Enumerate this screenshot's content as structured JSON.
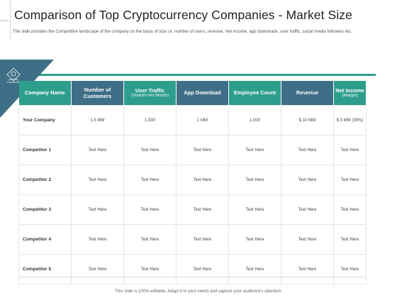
{
  "slide": {
    "title": "Comparison of Top Cryptocurrency Companies - Market Size",
    "subtitle": "The slide provides the Competitive landscape of the company on the basis of size i.e. number of users, revenue, Net income, app downloads, user traffic, social media followers etc.",
    "footer": "This slide is 100% editable. Adapt it to your needs and capture your audience's attention."
  },
  "table": {
    "headers": [
      {
        "label": "Company Name",
        "sub": "",
        "color": "teal"
      },
      {
        "label": "Number of Customers",
        "sub": "",
        "color": "navy"
      },
      {
        "label": "User Traffic",
        "sub": "(Visitors Per Month)",
        "color": "teal"
      },
      {
        "label": "App Download",
        "sub": "",
        "color": "navy"
      },
      {
        "label": "Employee Count",
        "sub": "",
        "color": "teal"
      },
      {
        "label": "Revenue",
        "sub": "",
        "color": "navy"
      },
      {
        "label": "Net Income",
        "sub": "(Margin)",
        "color": "teal"
      }
    ],
    "rows": [
      [
        "Your Company",
        "1.5 MM",
        "1,000",
        "1 MM",
        "1,000",
        "$ 10 MM",
        "$ 3 MM  (30%)"
      ],
      [
        "Competitor 1",
        "Text Here",
        "Text Here",
        "Text Here",
        "Text Here",
        "Text Here",
        "Text Here"
      ],
      [
        "Competitor 2",
        "Text Here",
        "Text Here",
        "Text Here",
        "Text Here",
        "Text Here",
        "Text Here"
      ],
      [
        "Competitor 3",
        "Text Here",
        "Text Here",
        "Text Here",
        "Text Here",
        "Text Here",
        "Text Here"
      ],
      [
        "Competitor 4",
        "Text Here",
        "Text Here",
        "Text Here",
        "Text Here",
        "Text Here",
        "Text Here"
      ],
      [
        "Competitor 5",
        "Text Here",
        "Text Here",
        "Text Here",
        "Text Here",
        "Text Here",
        "Text Here"
      ]
    ]
  },
  "colors": {
    "teal": "#2e9e8c",
    "navy": "#3f6f87",
    "corner": "#3d6f86"
  },
  "icons": {
    "corner": "hand-coin-icon"
  }
}
